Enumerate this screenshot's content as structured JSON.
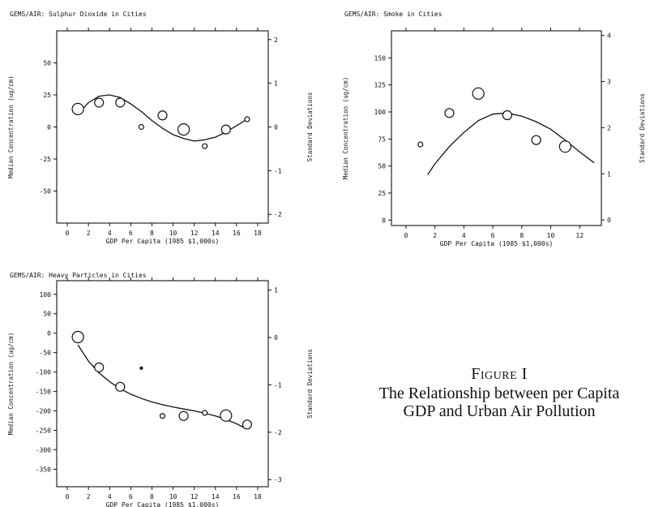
{
  "caption": {
    "figure": "Figure I",
    "title_line1": "The Relationship between per Capita",
    "title_line2": "GDP and Urban Air Pollution"
  },
  "chart_data": [
    {
      "type": "scatter",
      "title": "GEMS/AIR: Sulphur Dioxide in Cities",
      "xlabel": "GDP Per Capita (1985 $1,000s)",
      "ylabel": "Median Concentration (ug/cm)",
      "ylabel_right": "Standard Deviations",
      "xlim": [
        -1,
        19
      ],
      "ylim": [
        -75,
        75
      ],
      "yrlim": [
        -2.2,
        2.2
      ],
      "xticks": [
        "0",
        "2",
        "4",
        "6",
        "8",
        "10",
        "12",
        "14",
        "16",
        "18"
      ],
      "yticks": [
        "50",
        "25",
        "0",
        "-25",
        "-50"
      ],
      "yrticks": [
        "2",
        "1",
        "0",
        "-1",
        "-2"
      ],
      "points": [
        {
          "x": 1,
          "y": 14,
          "size": "large"
        },
        {
          "x": 3,
          "y": 19,
          "size": "medium"
        },
        {
          "x": 5,
          "y": 19,
          "size": "medium"
        },
        {
          "x": 7,
          "y": 0,
          "size": "small"
        },
        {
          "x": 9,
          "y": 9,
          "size": "medium"
        },
        {
          "x": 11,
          "y": -2,
          "size": "large"
        },
        {
          "x": 13,
          "y": -15,
          "size": "small"
        },
        {
          "x": 15,
          "y": -2,
          "size": "medium"
        },
        {
          "x": 17,
          "y": 6,
          "size": "small"
        }
      ],
      "fit": [
        [
          1,
          10
        ],
        [
          2,
          19
        ],
        [
          3,
          24
        ],
        [
          4,
          25
        ],
        [
          5,
          23
        ],
        [
          6,
          18
        ],
        [
          7,
          12
        ],
        [
          8,
          5
        ],
        [
          9,
          -1
        ],
        [
          10,
          -6
        ],
        [
          11,
          -9
        ],
        [
          12,
          -11
        ],
        [
          13,
          -10
        ],
        [
          14,
          -8
        ],
        [
          15,
          -4
        ],
        [
          16,
          1
        ],
        [
          17,
          6
        ]
      ]
    },
    {
      "type": "scatter",
      "title": "GEMS/AIR: Smoke in Cities",
      "xlabel": "GDP Per Capita (1985 $1,000s)",
      "ylabel": "Median Concentration (ug/cm)",
      "ylabel_right": "Standard Deviations",
      "xlim": [
        -1,
        13.5
      ],
      "ylim": [
        -5,
        175
      ],
      "yrlim": [
        -0.12,
        4.1
      ],
      "xticks": [
        "0",
        "2",
        "4",
        "6",
        "8",
        "10",
        "12"
      ],
      "yticks": [
        "150",
        "125",
        "100",
        "75",
        "50",
        "25",
        "0"
      ],
      "yrticks": [
        "4",
        "3",
        "2",
        "1",
        "0"
      ],
      "points": [
        {
          "x": 1,
          "y": 70,
          "size": "small"
        },
        {
          "x": 3,
          "y": 99,
          "size": "medium"
        },
        {
          "x": 5,
          "y": 117,
          "size": "large"
        },
        {
          "x": 7,
          "y": 97,
          "size": "medium"
        },
        {
          "x": 9,
          "y": 74,
          "size": "medium"
        },
        {
          "x": 11,
          "y": 68,
          "size": "large"
        }
      ],
      "fit": [
        [
          1.5,
          42
        ],
        [
          2,
          52
        ],
        [
          3,
          68
        ],
        [
          4,
          81
        ],
        [
          5,
          92
        ],
        [
          6,
          98
        ],
        [
          7,
          99
        ],
        [
          8,
          96
        ],
        [
          9,
          91
        ],
        [
          10,
          84
        ],
        [
          11,
          74
        ],
        [
          12,
          63
        ],
        [
          13,
          53
        ]
      ]
    },
    {
      "type": "scatter",
      "title": "GEMS/AIR: Heavy Particles in Cities",
      "xlabel": "GDP Per Capita (1985 $1,000s)",
      "ylabel": "Median Concentration (ug/cm)",
      "ylabel_right": "Standard Deviations",
      "xlim": [
        -1,
        19
      ],
      "ylim": [
        -395,
        135
      ],
      "yrlim": [
        -3.15,
        1.2
      ],
      "xticks": [
        "0",
        "2",
        "4",
        "6",
        "8",
        "10",
        "12",
        "14",
        "16",
        "18"
      ],
      "yticks": [
        "100",
        "50",
        "0",
        "-50",
        "-100",
        "-150",
        "-200",
        "-250",
        "-300",
        "-350"
      ],
      "yrticks": [
        "1",
        "0",
        "-1",
        "-2",
        "-3"
      ],
      "points": [
        {
          "x": 1,
          "y": -10,
          "size": "large"
        },
        {
          "x": 3,
          "y": -88,
          "size": "medium"
        },
        {
          "x": 5,
          "y": -138,
          "size": "medium"
        },
        {
          "x": 7,
          "y": -90,
          "size": "dot"
        },
        {
          "x": 9,
          "y": -213,
          "size": "small"
        },
        {
          "x": 11,
          "y": -213,
          "size": "medium"
        },
        {
          "x": 13,
          "y": -205,
          "size": "small"
        },
        {
          "x": 15,
          "y": -212,
          "size": "large"
        },
        {
          "x": 17,
          "y": -235,
          "size": "medium"
        }
      ],
      "fit": [
        [
          1,
          -30
        ],
        [
          2,
          -72
        ],
        [
          3,
          -102
        ],
        [
          4,
          -125
        ],
        [
          5,
          -143
        ],
        [
          6,
          -157
        ],
        [
          7,
          -168
        ],
        [
          8,
          -177
        ],
        [
          9,
          -184
        ],
        [
          10,
          -190
        ],
        [
          11,
          -195
        ],
        [
          12,
          -200
        ],
        [
          13,
          -206
        ],
        [
          14,
          -213
        ],
        [
          15,
          -222
        ],
        [
          16,
          -233
        ],
        [
          17,
          -247
        ]
      ]
    }
  ]
}
